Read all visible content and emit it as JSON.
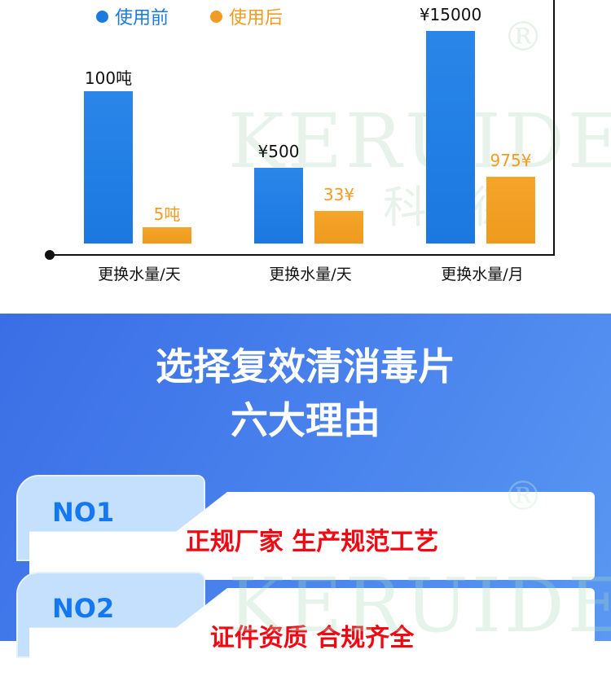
{
  "chart_data": {
    "type": "bar",
    "legend": [
      {
        "name": "使用前",
        "color": "#1a7ae0"
      },
      {
        "name": "使用后",
        "color": "#f09c22"
      }
    ],
    "legend_position": "top-left",
    "categories": [
      "更换水量/天",
      "更换水量/天",
      "更换水量/月"
    ],
    "series": [
      {
        "name": "使用前",
        "values": [
          100,
          500,
          15000
        ],
        "labels": [
          "100吨",
          "¥500",
          "¥15000"
        ]
      },
      {
        "name": "使用后",
        "values": [
          5,
          33,
          975
        ],
        "labels": [
          "5吨",
          "33¥",
          "975¥"
        ]
      }
    ],
    "grid": false
  },
  "watermark": {
    "text": "KERUIDE",
    "cn": "科瑞德",
    "reg": "®"
  },
  "section": {
    "title_line1": "选择复效清消毒片",
    "title_line2": "六大理由"
  },
  "reasons": [
    {
      "no": "NO1",
      "text": "正规厂家 生产规范工艺"
    },
    {
      "no": "NO2",
      "text": "证件资质 合规齐全"
    }
  ]
}
